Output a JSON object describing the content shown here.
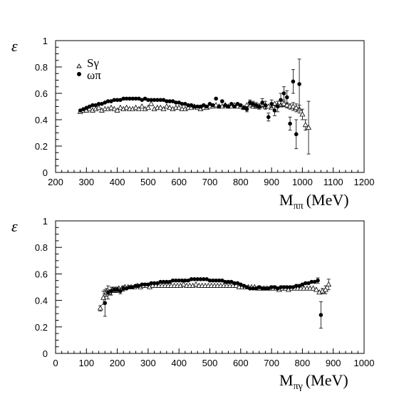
{
  "chart_data": [
    {
      "type": "scatter",
      "ylabel": "ε",
      "xlabel_main": "M",
      "xlabel_sub": "ππ",
      "xlabel_unit": "(MeV)",
      "xlim": [
        200,
        1200
      ],
      "ylim": [
        0,
        1
      ],
      "xticks": [
        200,
        300,
        400,
        500,
        600,
        700,
        800,
        900,
        1000,
        1100,
        1200
      ],
      "yticks": [
        0,
        0.2,
        0.4,
        0.6,
        0.8,
        1
      ],
      "ytick_labels": [
        "0",
        "0.2",
        "0.4",
        "0.6",
        "0.8",
        "1"
      ],
      "legend": {
        "position": "top-left",
        "entries": [
          "Sγ",
          "ωπ"
        ]
      },
      "series": [
        {
          "name": "Sγ",
          "marker": "open-triangle",
          "x": [
            280,
            290,
            300,
            310,
            320,
            330,
            340,
            350,
            360,
            370,
            380,
            390,
            400,
            410,
            420,
            430,
            440,
            450,
            460,
            470,
            480,
            490,
            500,
            510,
            520,
            530,
            540,
            550,
            560,
            570,
            580,
            590,
            600,
            610,
            620,
            630,
            640,
            650,
            660,
            670,
            680,
            690,
            700,
            710,
            720,
            730,
            740,
            750,
            760,
            770,
            780,
            790,
            800,
            810,
            820,
            830,
            840,
            850,
            860,
            870,
            880,
            890,
            900,
            910,
            920,
            930,
            940,
            950,
            960,
            970,
            980,
            990,
            1000,
            1010,
            1020
          ],
          "y": [
            0.46,
            0.47,
            0.47,
            0.48,
            0.47,
            0.48,
            0.49,
            0.47,
            0.48,
            0.48,
            0.49,
            0.48,
            0.47,
            0.49,
            0.48,
            0.49,
            0.48,
            0.48,
            0.49,
            0.48,
            0.5,
            0.48,
            0.49,
            0.52,
            0.48,
            0.49,
            0.49,
            0.48,
            0.5,
            0.49,
            0.48,
            0.49,
            0.49,
            0.48,
            0.48,
            0.49,
            0.49,
            0.5,
            0.49,
            0.48,
            0.49,
            0.49,
            0.5,
            0.5,
            0.51,
            0.5,
            0.5,
            0.51,
            0.5,
            0.5,
            0.51,
            0.5,
            0.5,
            0.49,
            0.51,
            0.51,
            0.5,
            0.5,
            0.5,
            0.51,
            0.5,
            0.5,
            0.49,
            0.52,
            0.51,
            0.51,
            0.52,
            0.51,
            0.5,
            0.5,
            0.49,
            0.48,
            0.44,
            0.36,
            0.34
          ],
          "yerr": [
            0,
            0,
            0,
            0,
            0,
            0,
            0,
            0,
            0,
            0,
            0,
            0,
            0,
            0,
            0,
            0,
            0,
            0,
            0,
            0,
            0,
            0,
            0,
            0,
            0,
            0,
            0,
            0,
            0,
            0,
            0,
            0,
            0,
            0,
            0,
            0,
            0,
            0,
            0,
            0,
            0,
            0,
            0,
            0,
            0,
            0,
            0,
            0,
            0,
            0,
            0,
            0,
            0,
            0,
            0,
            0,
            0,
            0,
            0,
            0,
            0,
            0,
            0,
            0,
            0,
            0,
            0.02,
            0.02,
            0.02,
            0.03,
            0.03,
            0.03,
            0.04,
            0.04,
            0.2
          ]
        },
        {
          "name": "ωπ",
          "marker": "filled-circle",
          "x": [
            280,
            290,
            300,
            310,
            320,
            330,
            340,
            350,
            360,
            370,
            380,
            390,
            400,
            410,
            420,
            430,
            440,
            450,
            460,
            470,
            480,
            490,
            500,
            510,
            520,
            530,
            540,
            550,
            560,
            570,
            580,
            590,
            600,
            610,
            620,
            630,
            640,
            650,
            660,
            670,
            680,
            690,
            700,
            710,
            720,
            730,
            740,
            750,
            760,
            770,
            780,
            790,
            800,
            810,
            820,
            830,
            840,
            850,
            860,
            870,
            880,
            890,
            900,
            910,
            920,
            930,
            940,
            950,
            960,
            970,
            990
          ],
          "y": [
            0.47,
            0.48,
            0.49,
            0.5,
            0.51,
            0.51,
            0.52,
            0.52,
            0.53,
            0.54,
            0.54,
            0.55,
            0.55,
            0.55,
            0.56,
            0.56,
            0.56,
            0.56,
            0.56,
            0.56,
            0.55,
            0.56,
            0.55,
            0.55,
            0.55,
            0.55,
            0.55,
            0.55,
            0.54,
            0.54,
            0.54,
            0.53,
            0.53,
            0.52,
            0.52,
            0.51,
            0.51,
            0.5,
            0.5,
            0.5,
            0.51,
            0.5,
            0.52,
            0.51,
            0.56,
            0.5,
            0.54,
            0.51,
            0.5,
            0.52,
            0.5,
            0.52,
            0.51,
            0.49,
            0.48,
            0.53,
            0.52,
            0.51,
            0.5,
            0.53,
            0.51,
            0.42,
            0.52,
            0.47,
            0.5,
            0.55,
            0.6,
            0.57,
            0.37,
            0.69,
            0.67
          ],
          "yerr": [
            0,
            0,
            0,
            0,
            0,
            0,
            0,
            0,
            0,
            0,
            0,
            0,
            0,
            0,
            0,
            0,
            0,
            0,
            0,
            0,
            0,
            0,
            0,
            0,
            0,
            0,
            0,
            0,
            0,
            0,
            0,
            0,
            0,
            0,
            0,
            0,
            0,
            0,
            0,
            0,
            0,
            0,
            0,
            0,
            0,
            0,
            0,
            0,
            0,
            0,
            0,
            0,
            0,
            0,
            0.02,
            0.02,
            0.02,
            0.02,
            0.02,
            0.03,
            0.03,
            0.03,
            0.03,
            0.04,
            0.04,
            0.05,
            0.05,
            0.05,
            0.05,
            0.09,
            0.19
          ]
        },
        {
          "name": "",
          "marker": "filled-circle",
          "x": [
            980
          ],
          "y": [
            0.29
          ],
          "yerr": [
            0.11
          ]
        }
      ]
    },
    {
      "type": "scatter",
      "ylabel": "ε",
      "xlabel_main": "M",
      "xlabel_sub": "πγ",
      "xlabel_unit": "(MeV)",
      "xlim": [
        0,
        1000
      ],
      "ylim": [
        0,
        1
      ],
      "xticks": [
        0,
        100,
        200,
        300,
        400,
        500,
        600,
        700,
        800,
        900,
        1000
      ],
      "yticks": [
        0,
        0.2,
        0.4,
        0.6,
        0.8,
        1
      ],
      "ytick_labels": [
        "0",
        "0.2",
        "0.4",
        "0.6",
        "0.8",
        "1"
      ],
      "series": [
        {
          "name": "Sγ",
          "marker": "open-triangle",
          "x": [
            145,
            155,
            165,
            175,
            185,
            195,
            205,
            215,
            225,
            235,
            245,
            255,
            265,
            275,
            285,
            295,
            305,
            315,
            325,
            335,
            345,
            355,
            365,
            375,
            385,
            395,
            405,
            415,
            425,
            435,
            445,
            455,
            465,
            475,
            485,
            495,
            505,
            515,
            525,
            535,
            545,
            555,
            565,
            575,
            585,
            595,
            605,
            615,
            625,
            635,
            645,
            655,
            665,
            675,
            685,
            695,
            705,
            715,
            725,
            735,
            745,
            755,
            765,
            775,
            785,
            795,
            805,
            815,
            825,
            835,
            845,
            855,
            865,
            875,
            885
          ],
          "y": [
            0.34,
            0.42,
            0.46,
            0.46,
            0.48,
            0.48,
            0.49,
            0.49,
            0.5,
            0.5,
            0.5,
            0.5,
            0.51,
            0.5,
            0.51,
            0.51,
            0.5,
            0.51,
            0.51,
            0.51,
            0.51,
            0.51,
            0.51,
            0.51,
            0.51,
            0.51,
            0.51,
            0.52,
            0.51,
            0.51,
            0.51,
            0.52,
            0.51,
            0.51,
            0.51,
            0.51,
            0.51,
            0.51,
            0.51,
            0.51,
            0.51,
            0.51,
            0.51,
            0.51,
            0.51,
            0.5,
            0.5,
            0.5,
            0.5,
            0.5,
            0.5,
            0.49,
            0.49,
            0.49,
            0.49,
            0.49,
            0.49,
            0.49,
            0.48,
            0.49,
            0.49,
            0.48,
            0.49,
            0.49,
            0.49,
            0.49,
            0.49,
            0.49,
            0.49,
            0.49,
            0.48,
            0.46,
            0.47,
            0.48,
            0.52
          ],
          "yerr": [
            0.02,
            0.05,
            0.03,
            0.02,
            0.02,
            0.02,
            0,
            0,
            0,
            0,
            0,
            0,
            0,
            0,
            0,
            0,
            0,
            0,
            0,
            0,
            0,
            0,
            0,
            0,
            0,
            0,
            0,
            0,
            0,
            0,
            0,
            0,
            0,
            0,
            0,
            0,
            0,
            0,
            0,
            0,
            0,
            0,
            0,
            0,
            0,
            0,
            0,
            0,
            0,
            0,
            0,
            0,
            0,
            0,
            0,
            0,
            0,
            0,
            0,
            0,
            0,
            0,
            0,
            0,
            0,
            0,
            0,
            0,
            0,
            0,
            0,
            0,
            0.02,
            0.03,
            0.04
          ]
        },
        {
          "name": "ωπ",
          "marker": "filled-circle",
          "x": [
            160,
            170,
            180,
            190,
            200,
            210,
            220,
            230,
            240,
            250,
            260,
            270,
            280,
            290,
            300,
            310,
            320,
            330,
            340,
            350,
            360,
            370,
            380,
            390,
            400,
            410,
            420,
            430,
            440,
            450,
            460,
            470,
            480,
            490,
            500,
            510,
            520,
            530,
            540,
            550,
            560,
            570,
            580,
            590,
            600,
            610,
            620,
            630,
            640,
            650,
            660,
            670,
            680,
            690,
            700,
            710,
            720,
            730,
            740,
            750,
            760,
            770,
            780,
            790,
            800,
            810,
            820,
            830,
            840,
            850,
            860
          ],
          "y": [
            0.38,
            0.46,
            0.47,
            0.48,
            0.48,
            0.47,
            0.49,
            0.49,
            0.5,
            0.5,
            0.51,
            0.51,
            0.52,
            0.52,
            0.52,
            0.53,
            0.53,
            0.53,
            0.54,
            0.54,
            0.54,
            0.54,
            0.55,
            0.55,
            0.55,
            0.55,
            0.55,
            0.55,
            0.56,
            0.56,
            0.56,
            0.56,
            0.56,
            0.56,
            0.55,
            0.55,
            0.55,
            0.55,
            0.55,
            0.54,
            0.54,
            0.54,
            0.53,
            0.53,
            0.52,
            0.51,
            0.5,
            0.49,
            0.49,
            0.49,
            0.5,
            0.49,
            0.49,
            0.49,
            0.5,
            0.5,
            0.49,
            0.5,
            0.5,
            0.5,
            0.5,
            0.5,
            0.51,
            0.51,
            0.52,
            0.53,
            0.53,
            0.54,
            0.54,
            0.55,
            0.29
          ],
          "yerr": [
            0.1,
            0.05,
            0.03,
            0.02,
            0.02,
            0.02,
            0.02,
            0,
            0,
            0,
            0,
            0,
            0,
            0,
            0,
            0,
            0,
            0,
            0,
            0,
            0,
            0,
            0,
            0,
            0,
            0,
            0,
            0,
            0,
            0,
            0,
            0,
            0,
            0,
            0,
            0,
            0,
            0,
            0,
            0,
            0,
            0,
            0,
            0,
            0,
            0,
            0,
            0,
            0,
            0,
            0,
            0,
            0,
            0,
            0,
            0,
            0,
            0,
            0,
            0,
            0,
            0,
            0,
            0,
            0,
            0,
            0,
            0,
            0,
            0.02,
            0.1
          ]
        }
      ]
    }
  ]
}
